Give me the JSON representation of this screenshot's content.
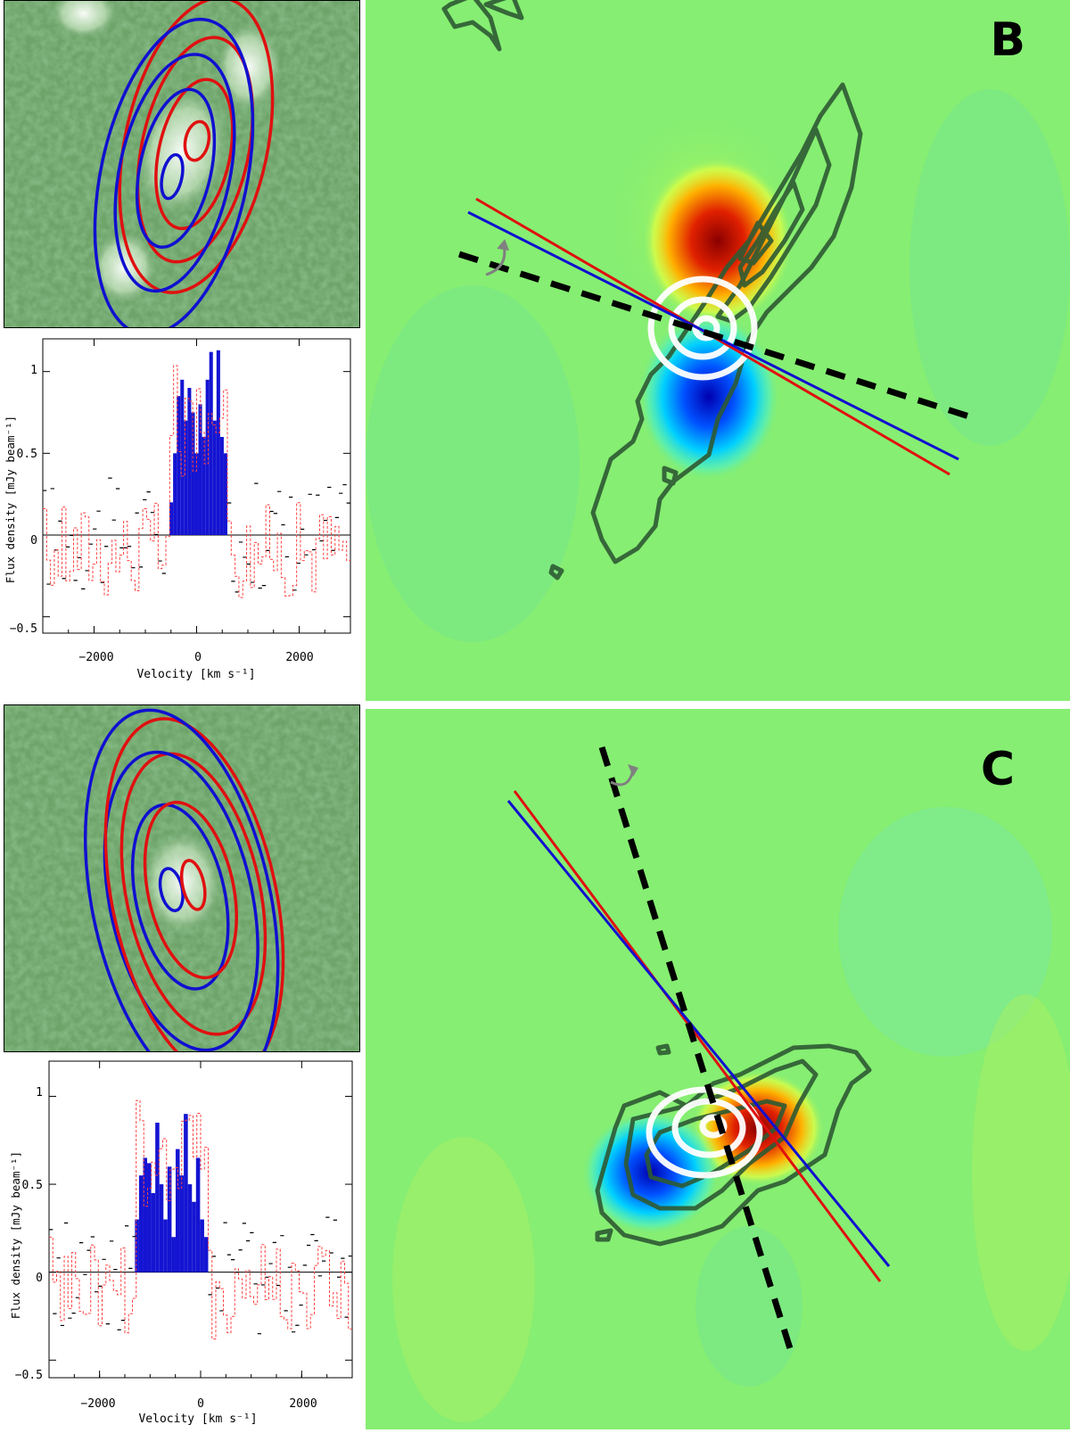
{
  "panels": [
    {
      "letter": "B",
      "spectrum": {
        "ylabel": "Flux density [mJy beam⁻¹]",
        "xlabel": "Velocity [km s⁻¹]",
        "xticks": [
          "−2000",
          "0",
          "2000"
        ],
        "yticks": [
          "−0.5",
          "0",
          "0.5",
          "1"
        ]
      }
    },
    {
      "letter": "C",
      "spectrum": {
        "ylabel": "Flux density [mJy beam⁻¹]",
        "xlabel": "Velocity [km s⁻¹]",
        "xticks": [
          "−2000",
          "0",
          "2000"
        ],
        "yticks": [
          "−0.5",
          "0",
          "0.5",
          "1"
        ]
      }
    }
  ],
  "chart_data": [
    {
      "type": "bar",
      "xlim": [
        -3000,
        3000
      ],
      "ylim": [
        -0.6,
        1.2
      ],
      "velocity_range_kms": [
        -600,
        600
      ],
      "series": [
        {
          "values": [
            0.0,
            0.2,
            0.5,
            0.85,
            0.95,
            0.7,
            0.9,
            0.75,
            0.5,
            0.8,
            0.6,
            0.95,
            1.12,
            0.7,
            1.13,
            0.6,
            0.5
          ]
        }
      ],
      "colors": {
        "emission": "#1414d2",
        "spectrum": "#000000",
        "comparison": "#ff4040"
      }
    },
    {
      "type": "bar",
      "xlim": [
        -3000,
        3000
      ],
      "ylim": [
        -0.6,
        1.2
      ],
      "velocity_range_kms": [
        -1300,
        150
      ],
      "series": [
        {
          "values": [
            0.3,
            0.55,
            0.65,
            0.62,
            0.45,
            0.85,
            0.5,
            0.3,
            0.6,
            0.2,
            0.7,
            0.55,
            0.9,
            0.5,
            0.4,
            0.65,
            0.3,
            0.2
          ]
        }
      ],
      "colors": {
        "emission": "#1414d2",
        "spectrum": "#000000",
        "comparison": "#ff4040"
      }
    }
  ],
  "colors": {
    "red": "#e01010",
    "blue": "#1010d0",
    "contour": "#2e5a33",
    "map_bg": "#86ee72"
  }
}
